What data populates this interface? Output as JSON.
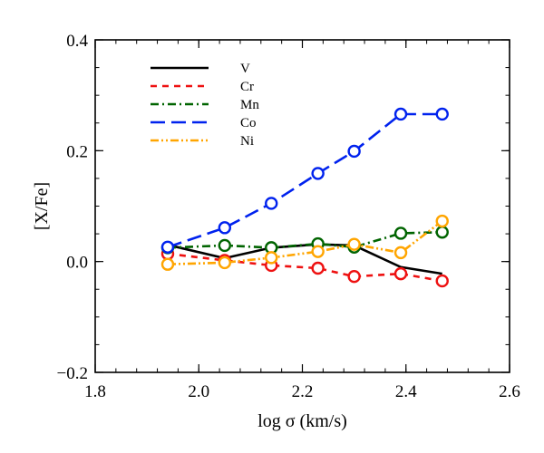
{
  "chart_data": {
    "type": "line",
    "xlabel": "log σ (km/s)",
    "ylabel": "[X/Fe]",
    "xlim": [
      1.8,
      2.6
    ],
    "ylim": [
      -0.2,
      0.4
    ],
    "xticks": [
      1.8,
      2.0,
      2.2,
      2.4,
      2.6
    ],
    "xtick_labels": [
      "1.8",
      "2.0",
      "2.2",
      "2.4",
      "2.6"
    ],
    "yticks": [
      -0.2,
      0.0,
      0.2,
      0.4
    ],
    "ytick_labels": [
      "−0.2",
      "0.0",
      "0.2",
      "0.4"
    ],
    "grid": false,
    "legend_position": "top-left",
    "x": [
      1.94,
      2.05,
      2.14,
      2.23,
      2.3,
      2.39,
      2.47
    ],
    "series": [
      {
        "name": "V",
        "color": "#000000",
        "dash": "solid",
        "markers": false,
        "values": [
          0.03,
          0.006,
          0.025,
          0.031,
          0.029,
          -0.01,
          -0.022
        ]
      },
      {
        "name": "Cr",
        "color": "#ee1111",
        "dash": "dashed",
        "markers": true,
        "values": [
          0.014,
          0.002,
          -0.007,
          -0.012,
          -0.027,
          -0.022,
          -0.035
        ]
      },
      {
        "name": "Mn",
        "color": "#006400",
        "dash": "dash-dot",
        "markers": true,
        "values": [
          0.025,
          0.029,
          0.025,
          0.032,
          0.026,
          0.051,
          0.053
        ]
      },
      {
        "name": "Co",
        "color": "#0022ee",
        "dash": "long-dash",
        "markers": true,
        "values": [
          0.026,
          0.061,
          0.105,
          0.159,
          0.199,
          0.266,
          0.266
        ]
      },
      {
        "name": "Ni",
        "color": "#ffa500",
        "dash": "dash-dot-dot",
        "markers": true,
        "values": [
          -0.005,
          -0.002,
          0.007,
          0.018,
          0.031,
          0.016,
          0.073
        ]
      }
    ]
  }
}
